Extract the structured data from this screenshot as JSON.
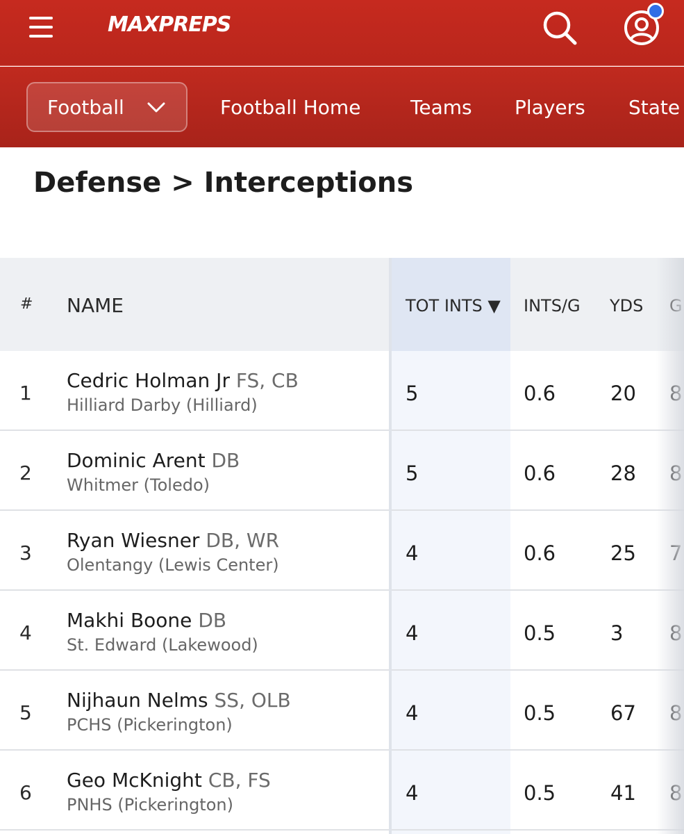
{
  "header": {
    "logo_text": "MAXPREPS",
    "icons": {
      "menu": "hamburger-menu-icon",
      "search": "search-icon",
      "profile": "user-profile-icon"
    }
  },
  "subnav": {
    "sport_select": "Football",
    "links": [
      "Football Home",
      "Teams",
      "Players",
      "State"
    ]
  },
  "page": {
    "title": "Defense > Interceptions"
  },
  "table": {
    "columns": {
      "rank": "#",
      "name": "NAME",
      "tot_ints": "TOT INTS ▼",
      "ints_g": "INTS/G",
      "yds": "YDS",
      "g": "G"
    },
    "rows": [
      {
        "rank": "1",
        "name": "Cedric Holman Jr",
        "pos": "FS, CB",
        "school": "Hilliard Darby (Hilliard)",
        "tot_ints": "5",
        "ints_g": "0.6",
        "yds": "20",
        "g": "8"
      },
      {
        "rank": "2",
        "name": "Dominic Arent",
        "pos": "DB",
        "school": "Whitmer (Toledo)",
        "tot_ints": "5",
        "ints_g": "0.6",
        "yds": "28",
        "g": "8"
      },
      {
        "rank": "3",
        "name": "Ryan Wiesner",
        "pos": "DB, WR",
        "school": "Olentangy (Lewis Center)",
        "tot_ints": "4",
        "ints_g": "0.6",
        "yds": "25",
        "g": "7"
      },
      {
        "rank": "4",
        "name": "Makhi Boone",
        "pos": "DB",
        "school": "St. Edward (Lakewood)",
        "tot_ints": "4",
        "ints_g": "0.5",
        "yds": "3",
        "g": "8"
      },
      {
        "rank": "5",
        "name": "Nijhaun Nelms",
        "pos": "SS, OLB",
        "school": "PCHS (Pickerington)",
        "tot_ints": "4",
        "ints_g": "0.5",
        "yds": "67",
        "g": "8"
      },
      {
        "rank": "6",
        "name": "Geo McKnight",
        "pos": "CB, FS",
        "school": "PNHS (Pickerington)",
        "tot_ints": "4",
        "ints_g": "0.5",
        "yds": "41",
        "g": "8"
      }
    ]
  },
  "colors": {
    "brand_red": "#c62a1f",
    "notification": "#2f6ee6"
  }
}
